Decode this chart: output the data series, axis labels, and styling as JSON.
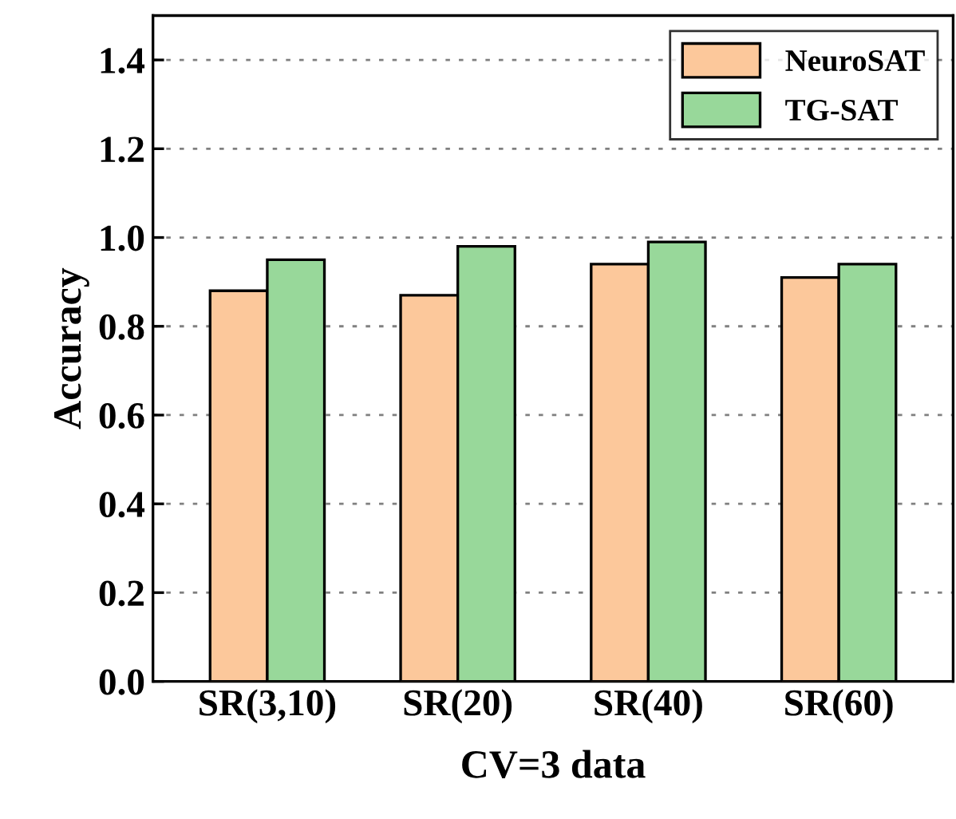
{
  "chart_data": {
    "type": "bar",
    "xlabel": "CV=3 data",
    "ylabel": "Accuracy",
    "categories": [
      "SR(3,10)",
      "SR(20)",
      "SR(40)",
      "SR(60)"
    ],
    "series": [
      {
        "name": "NeuroSAT",
        "color": "#fcc89b",
        "values": [
          0.88,
          0.87,
          0.94,
          0.91
        ]
      },
      {
        "name": "TG-SAT",
        "color": "#98d89a",
        "values": [
          0.95,
          0.98,
          0.99,
          0.94
        ]
      }
    ],
    "ylim": [
      0,
      1.5
    ],
    "yticks": [
      {
        "value": 0,
        "label": "0.0"
      },
      0.2,
      0.4,
      0.6,
      0.8,
      {
        "value": 1,
        "label": "1.0"
      },
      1.2,
      1.4
    ],
    "grid": "y",
    "legend": "top right"
  }
}
